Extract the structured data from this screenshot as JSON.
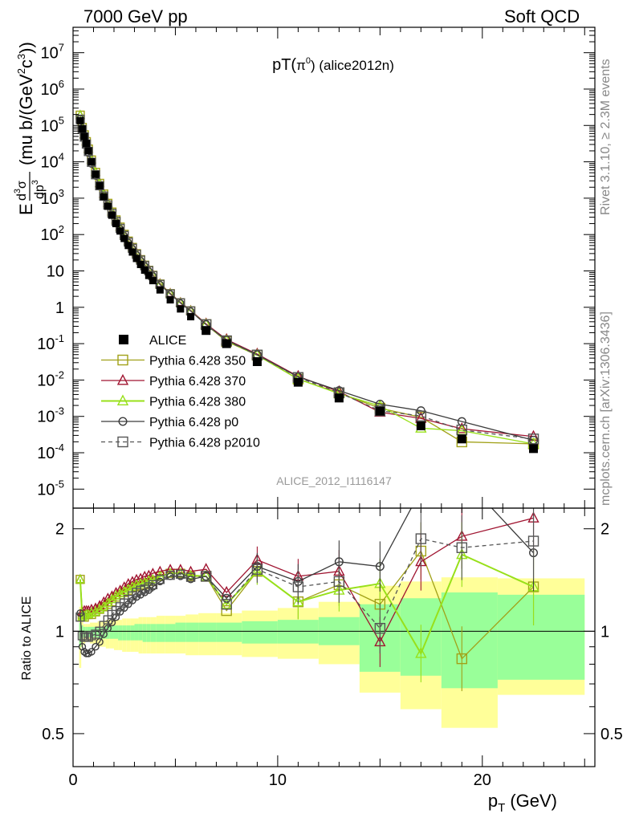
{
  "header": {
    "left": "7000 GeV pp",
    "right": "Soft QCD",
    "side_top": "Rivet 3.1.10, ≥ 2.3M events",
    "side_bottom": "mcplots.cern.ch [arXiv:1306.3436]",
    "watermark": "ALICE_2012_I1116147"
  },
  "chart_data": {
    "type": "scatter",
    "title": "pT(π⁰) (alice2012n)",
    "title_parts": {
      "main": "pT(",
      "particle": "π",
      "sup": "0",
      "end": ") (alice2012n)"
    },
    "xlabel": "p",
    "xlabel_sub": "T",
    "xlabel_unit": "(GeV)",
    "ylabel_upper": "(mu b/(GeV",
    "ylabel_upper_mid": "c",
    "ylabel_upper_end": "))",
    "ylabel_lower": "Ratio to ALICE",
    "xlim": [
      0,
      25.5
    ],
    "ylim_top": [
      3e-06,
      50000000.0
    ],
    "ylim_bottom": [
      0.4,
      2.3
    ],
    "log_y_top": true,
    "log_y_bottom": true,
    "x_ticks": [
      "0",
      "10",
      "20"
    ],
    "y_ticks_top": [
      "10^7",
      "10^6",
      "10^5",
      "10^4",
      "10^3",
      "10^2",
      "10",
      "1",
      "10^-1",
      "10^-2",
      "10^-3",
      "10^-4",
      "10^-5"
    ],
    "y_ticks_bottom": [
      "2",
      "1",
      "0.5"
    ],
    "legend_position": "bottom-left",
    "x": [
      0.35,
      0.45,
      0.55,
      0.65,
      0.75,
      0.9,
      1.1,
      1.3,
      1.5,
      1.7,
      1.9,
      2.1,
      2.3,
      2.5,
      2.7,
      2.9,
      3.1,
      3.3,
      3.5,
      3.7,
      3.9,
      4.25,
      4.75,
      5.25,
      5.75,
      6.5,
      7.5,
      9.0,
      11.0,
      13.0,
      15.0,
      17.0,
      19.0,
      22.5
    ],
    "data": {
      "name": "ALICE",
      "color": "#000000",
      "values": [
        135000.0,
        80000.0,
        50000.0,
        32000.0,
        20000.0,
        10000.0,
        4500.0,
        2200.0,
        1100.0,
        600,
        340,
        200,
        125,
        78,
        50,
        33,
        22,
        15,
        10.5,
        7.5,
        5.4,
        3.0,
        1.6,
        0.9,
        0.55,
        0.23,
        0.1,
        0.032,
        0.0087,
        0.0032,
        0.0014,
        0.00055,
        0.00024,
        0.00013
      ],
      "err_low_band": [
        0.78,
        0.9,
        0.92,
        0.93,
        0.93,
        0.92,
        0.92,
        0.9,
        0.9,
        0.89,
        0.89,
        0.88,
        0.88,
        0.87,
        0.87,
        0.87,
        0.87,
        0.86,
        0.86,
        0.86,
        0.86,
        0.86,
        0.86,
        0.86,
        0.85,
        0.85,
        0.85,
        0.84,
        0.83,
        0.8,
        0.66,
        0.59,
        0.52,
        0.65
      ],
      "err_high_band": [
        1.18,
        1.08,
        1.05,
        1.05,
        1.05,
        1.06,
        1.06,
        1.07,
        1.07,
        1.08,
        1.08,
        1.08,
        1.08,
        1.09,
        1.09,
        1.09,
        1.09,
        1.1,
        1.1,
        1.1,
        1.1,
        1.11,
        1.11,
        1.11,
        1.12,
        1.13,
        1.13,
        1.15,
        1.17,
        1.22,
        1.36,
        1.4,
        1.44,
        1.43
      ],
      "stat_low_band": [
        0.9,
        0.95,
        0.96,
        0.96,
        0.96,
        0.96,
        0.96,
        0.95,
        0.95,
        0.95,
        0.95,
        0.95,
        0.94,
        0.94,
        0.94,
        0.94,
        0.94,
        0.94,
        0.93,
        0.93,
        0.93,
        0.93,
        0.93,
        0.93,
        0.93,
        0.93,
        0.93,
        0.92,
        0.92,
        0.91,
        0.76,
        0.74,
        0.68,
        0.72
      ],
      "stat_high_band": [
        1.06,
        1.04,
        1.03,
        1.03,
        1.03,
        1.03,
        1.03,
        1.03,
        1.03,
        1.04,
        1.04,
        1.04,
        1.04,
        1.04,
        1.04,
        1.04,
        1.05,
        1.05,
        1.05,
        1.05,
        1.05,
        1.05,
        1.05,
        1.06,
        1.06,
        1.06,
        1.06,
        1.07,
        1.08,
        1.1,
        1.2,
        1.25,
        1.3,
        1.28
      ]
    },
    "series": [
      {
        "name": "Pythia 6.428 350",
        "color": "#a1a118",
        "marker": "square",
        "dashed": false,
        "ratio": [
          1.42,
          1.1,
          1.1,
          1.12,
          1.12,
          1.12,
          1.14,
          1.16,
          1.18,
          1.2,
          1.22,
          1.26,
          1.28,
          1.3,
          1.32,
          1.34,
          1.35,
          1.36,
          1.37,
          1.38,
          1.4,
          1.45,
          1.48,
          1.48,
          1.45,
          1.45,
          1.15,
          1.5,
          1.22,
          1.37,
          1.2,
          1.72,
          0.83,
          1.35
        ]
      },
      {
        "name": "Pythia 6.428 370",
        "color": "#a01531",
        "marker": "triangle",
        "dashed": false,
        "ratio": [
          1.42,
          1.14,
          1.15,
          1.15,
          1.15,
          1.16,
          1.17,
          1.19,
          1.22,
          1.25,
          1.27,
          1.3,
          1.32,
          1.35,
          1.38,
          1.4,
          1.42,
          1.43,
          1.45,
          1.46,
          1.48,
          1.5,
          1.52,
          1.52,
          1.5,
          1.52,
          1.3,
          1.62,
          1.45,
          1.5,
          0.93,
          1.6,
          1.9,
          2.15
        ]
      },
      {
        "name": "Pythia 6.428 380",
        "color": "#98e01a",
        "marker": "triangle",
        "dashed": false,
        "ratio": [
          1.42,
          1.1,
          1.11,
          1.12,
          1.12,
          1.13,
          1.14,
          1.16,
          1.18,
          1.21,
          1.24,
          1.27,
          1.29,
          1.31,
          1.33,
          1.35,
          1.37,
          1.38,
          1.39,
          1.41,
          1.42,
          1.45,
          1.48,
          1.48,
          1.46,
          1.45,
          1.2,
          1.5,
          1.22,
          1.32,
          1.38,
          0.86,
          1.68,
          1.35
        ]
      },
      {
        "name": "Pythia 6.428 p0",
        "color": "#3c3c3c",
        "marker": "circle",
        "dashed": false,
        "ratio": [
          1.13,
          0.9,
          0.87,
          0.86,
          0.86,
          0.87,
          0.9,
          0.93,
          0.98,
          1.02,
          1.06,
          1.1,
          1.14,
          1.17,
          1.2,
          1.23,
          1.26,
          1.28,
          1.3,
          1.32,
          1.35,
          1.4,
          1.45,
          1.45,
          1.42,
          1.45,
          1.25,
          1.55,
          1.4,
          1.6,
          1.55,
          2.6,
          3.0,
          1.7
        ]
      },
      {
        "name": "Pythia 6.428 p2010",
        "color": "#555555",
        "marker": "square",
        "dashed": true,
        "ratio": [
          1.1,
          0.97,
          0.96,
          0.96,
          0.96,
          0.97,
          0.98,
          1.0,
          1.04,
          1.08,
          1.12,
          1.15,
          1.18,
          1.21,
          1.24,
          1.27,
          1.3,
          1.32,
          1.33,
          1.35,
          1.37,
          1.42,
          1.46,
          1.47,
          1.44,
          1.45,
          1.2,
          1.52,
          1.35,
          1.4,
          1.02,
          1.87,
          1.76,
          1.84
        ]
      }
    ]
  }
}
